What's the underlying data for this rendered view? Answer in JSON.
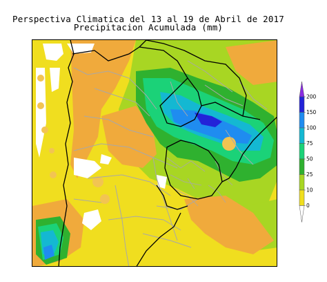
{
  "title": {
    "line1": "Perspectiva Climatica del 13 al 19 de Abril de 2017",
    "line2": "Precipitacion Acumulada (mm)"
  },
  "legend": {
    "ticks": [
      "200",
      "150",
      "100",
      "75",
      "50",
      "25",
      "10",
      "0"
    ],
    "colors": {
      "above200": "#8a2be2",
      "150-200": "#2323d8",
      "100-150": "#1f8cf0",
      "75-100": "#14b8d2",
      "50-75": "#1bd278",
      "25-50": "#2fb12f",
      "10-25": "#a8d623",
      "0-10": "#f0de1f",
      "dry": "#ffffff",
      "orange": "#f0aa3c",
      "light_orange": "#f2c452"
    }
  },
  "map": {
    "border_color": "#000000",
    "province_line_color": "#a8a8a8"
  }
}
